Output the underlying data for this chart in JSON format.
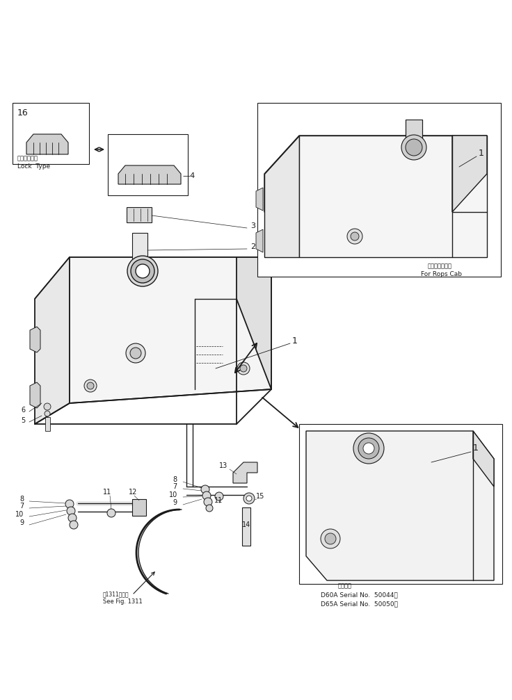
{
  "bg_color": "#ffffff",
  "line_color": "#1a1a1a",
  "fig_width": 7.36,
  "fig_height": 10.07,
  "dpi": 100,
  "annotations": {
    "lock_type_jp": "ロックタイプ",
    "lock_type_en": "Lock  Type",
    "for_rops_cab_jp": "ロプスキャブ用",
    "for_rops_cab_en": "For Rops Cab",
    "see_fig_jp": "第1311図参照",
    "see_fig_en": "See Fig. 1311",
    "applicable_jp": "適用号機",
    "d60a_text": "D60A Serial No.  50044～",
    "d65a_text": "D65A Serial No.  50050～"
  }
}
